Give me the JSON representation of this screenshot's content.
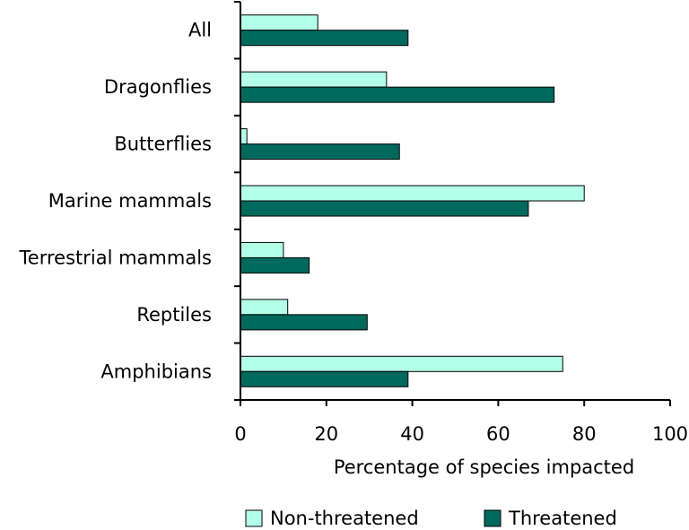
{
  "chart_data": {
    "type": "bar",
    "orientation": "horizontal",
    "title": "",
    "xlabel": "Percentage of species impacted",
    "ylabel": "",
    "xlim": [
      0,
      100
    ],
    "x_ticks": [
      0,
      20,
      40,
      60,
      80,
      100
    ],
    "categories": [
      "All",
      "Dragonflies",
      "Butterflies",
      "Marine mammals",
      "Terrestrial mammals",
      "Reptiles",
      "Amphibians"
    ],
    "series": [
      {
        "name": "Non-threatened",
        "color": "#b3ffe8",
        "values": [
          18,
          34,
          1.5,
          80,
          10,
          11,
          75
        ]
      },
      {
        "name": "Threatened",
        "color": "#00695e",
        "values": [
          39,
          73,
          37,
          67,
          16,
          29.5,
          39
        ]
      }
    ],
    "grid": false,
    "legend_position": "bottom"
  }
}
